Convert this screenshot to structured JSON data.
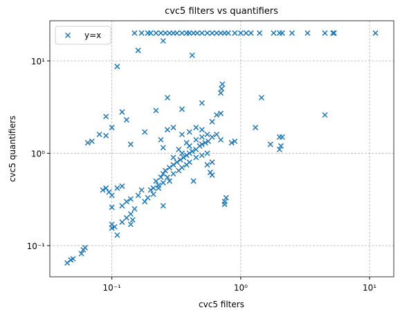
{
  "chart_data": {
    "type": "scatter",
    "title": "cvc5 filters vs quantifiers",
    "xlabel": "cvc5 filters",
    "ylabel": "cvc5 quantifiers",
    "xscale": "log",
    "yscale": "log",
    "grid": true,
    "legend": "upper left",
    "xlim": [
      0.033,
      15.4
    ],
    "ylim": [
      0.046,
      27.2
    ],
    "xticks": [
      {
        "value": 0.1,
        "label": "10⁻¹"
      },
      {
        "value": 1,
        "label": "10⁰"
      },
      {
        "value": 10,
        "label": "10¹"
      }
    ],
    "yticks": [
      {
        "value": 0.1,
        "label": "10⁻¹"
      },
      {
        "value": 1,
        "label": "10⁰"
      },
      {
        "value": 10,
        "label": "10¹"
      }
    ],
    "series": [
      {
        "name": "y=x",
        "color": "#1f77b4",
        "x": [
          0.15,
          0.17,
          0.19,
          0.2,
          0.22,
          0.24,
          0.26,
          0.28,
          0.3,
          0.32,
          0.35,
          0.38,
          0.4,
          0.43,
          0.46,
          0.5,
          0.55,
          0.6,
          0.65,
          0.7,
          0.75,
          0.8,
          0.9,
          1.0,
          1.1,
          1.2,
          1.4,
          1.8,
          2.0,
          2.1,
          2.5,
          3.3,
          4.5,
          5.2,
          5.3,
          11.1,
          0.16,
          0.25,
          0.42,
          0.11,
          0.72,
          0.71,
          0.7,
          0.27,
          1.45,
          4.5,
          0.09,
          0.12,
          0.13,
          0.22,
          0.35,
          0.5,
          0.65,
          0.7,
          0.6,
          1.3,
          2.0,
          2.1,
          1.7,
          2.0,
          2.05,
          0.85,
          0.9,
          0.14,
          0.065,
          0.07,
          0.08,
          0.09,
          0.1,
          0.18,
          0.24,
          0.25,
          0.27,
          0.3,
          0.35,
          0.4,
          0.45,
          0.5,
          0.55,
          0.6,
          0.65,
          0.7,
          0.58,
          0.6,
          0.75,
          0.75,
          0.77,
          0.43,
          0.22,
          0.24,
          0.25,
          0.26,
          0.28,
          0.3,
          0.32,
          0.34,
          0.36,
          0.38,
          0.4,
          0.42,
          0.45,
          0.48,
          0.5,
          0.53,
          0.56,
          0.3,
          0.35,
          0.4,
          0.45,
          0.5,
          0.55,
          0.27,
          0.33,
          0.38,
          0.3,
          0.35,
          0.4,
          0.28,
          0.23,
          0.21,
          0.25,
          0.45,
          0.5,
          0.38,
          0.33,
          0.6,
          0.55,
          0.045,
          0.048,
          0.05,
          0.058,
          0.06,
          0.062,
          0.1,
          0.1,
          0.105,
          0.11,
          0.12,
          0.12,
          0.13,
          0.13,
          0.14,
          0.14,
          0.15,
          0.16,
          0.17,
          0.18,
          0.19,
          0.2,
          0.21,
          0.23,
          0.25,
          0.085,
          0.09,
          0.095,
          0.1,
          0.1,
          0.11,
          0.12,
          0.14,
          0.145
        ],
        "values": [
          20,
          20,
          20,
          20,
          20,
          20,
          20,
          20,
          20,
          20,
          20,
          20,
          20,
          20,
          20,
          20,
          20,
          20,
          20,
          20,
          20,
          20,
          20,
          20,
          20,
          20,
          20,
          20,
          20,
          20,
          20,
          20,
          20,
          20,
          20,
          20,
          13,
          16.5,
          11.5,
          8.7,
          5.6,
          5.0,
          4.5,
          4.0,
          4.0,
          2.6,
          2.5,
          2.8,
          2.3,
          2.9,
          3.0,
          3.5,
          2.6,
          2.7,
          2.2,
          1.9,
          1.5,
          1.5,
          1.25,
          1.1,
          1.2,
          1.3,
          1.35,
          1.25,
          1.3,
          1.35,
          1.6,
          1.55,
          1.9,
          1.7,
          1.4,
          1.15,
          1.8,
          1.9,
          1.6,
          1.7,
          1.9,
          1.8,
          1.6,
          1.5,
          1.6,
          1.4,
          0.62,
          0.58,
          0.3,
          0.28,
          0.33,
          0.5,
          0.5,
          0.55,
          0.6,
          0.65,
          0.7,
          0.75,
          0.8,
          0.85,
          0.9,
          0.95,
          1.0,
          1.05,
          1.1,
          1.2,
          1.25,
          1.3,
          1.35,
          0.6,
          0.7,
          0.8,
          0.9,
          0.95,
          1.0,
          0.55,
          0.65,
          0.75,
          0.9,
          1.0,
          1.2,
          0.5,
          0.45,
          0.42,
          0.48,
          1.4,
          1.5,
          1.3,
          1.1,
          0.8,
          0.75,
          0.065,
          0.07,
          0.072,
          0.082,
          0.09,
          0.095,
          0.17,
          0.155,
          0.16,
          0.13,
          0.18,
          0.27,
          0.2,
          0.3,
          0.22,
          0.32,
          0.25,
          0.35,
          0.4,
          0.3,
          0.33,
          0.4,
          0.36,
          0.42,
          0.27,
          0.4,
          0.42,
          0.38,
          0.35,
          0.26,
          0.42,
          0.44,
          0.17,
          0.19
        ]
      }
    ]
  }
}
